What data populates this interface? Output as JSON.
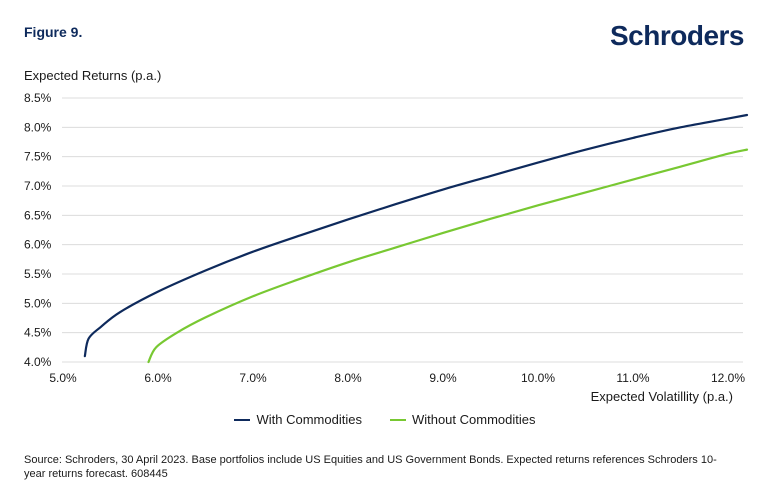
{
  "figure_label": "Figure 9.",
  "brand": "Schroders",
  "source_note": "Source: Schroders, 30 April 2023. Base portfolios include US Equities and US Government Bonds. Expected returns references Schroders 10-year returns forecast. 608445",
  "chart_data": {
    "type": "line",
    "ylabel": "Expected Returns (p.a.)",
    "xlabel": "Expected Volatillity (p.a.)",
    "xlim": [
      5.0,
      12.2
    ],
    "ylim": [
      4.0,
      8.5
    ],
    "xticks": [
      "5.0%",
      "6.0%",
      "7.0%",
      "8.0%",
      "9.0%",
      "10.0%",
      "11.0%",
      "12.0%"
    ],
    "xtick_values": [
      5.0,
      6.0,
      7.0,
      8.0,
      9.0,
      10.0,
      11.0,
      12.0
    ],
    "yticks": [
      "4.0%",
      "4.5%",
      "5.0%",
      "5.5%",
      "6.0%",
      "6.5%",
      "7.0%",
      "7.5%",
      "8.0%",
      "8.5%"
    ],
    "ytick_values": [
      4.0,
      4.5,
      5.0,
      5.5,
      6.0,
      6.5,
      7.0,
      7.5,
      8.0,
      8.5
    ],
    "grid": "horizontal",
    "legend_position": "bottom",
    "series": [
      {
        "name": "With Commodities",
        "color": "#0e2a5c",
        "points": [
          [
            5.23,
            4.1
          ],
          [
            5.27,
            4.4
          ],
          [
            5.4,
            4.6
          ],
          [
            5.6,
            4.85
          ],
          [
            6.0,
            5.2
          ],
          [
            6.5,
            5.56
          ],
          [
            7.0,
            5.88
          ],
          [
            7.5,
            6.16
          ],
          [
            8.0,
            6.43
          ],
          [
            8.5,
            6.69
          ],
          [
            9.0,
            6.94
          ],
          [
            9.5,
            7.17
          ],
          [
            10.0,
            7.4
          ],
          [
            10.5,
            7.62
          ],
          [
            11.0,
            7.82
          ],
          [
            11.5,
            8.0
          ],
          [
            12.0,
            8.15
          ],
          [
            12.2,
            8.21
          ]
        ]
      },
      {
        "name": "Without Commodities",
        "color": "#78c832",
        "points": [
          [
            5.9,
            4.0
          ],
          [
            5.98,
            4.25
          ],
          [
            6.2,
            4.5
          ],
          [
            6.5,
            4.76
          ],
          [
            7.0,
            5.12
          ],
          [
            7.5,
            5.42
          ],
          [
            8.0,
            5.7
          ],
          [
            8.5,
            5.95
          ],
          [
            9.0,
            6.2
          ],
          [
            9.5,
            6.44
          ],
          [
            10.0,
            6.67
          ],
          [
            10.5,
            6.89
          ],
          [
            11.0,
            7.11
          ],
          [
            11.5,
            7.33
          ],
          [
            12.0,
            7.55
          ],
          [
            12.2,
            7.62
          ]
        ]
      }
    ]
  }
}
